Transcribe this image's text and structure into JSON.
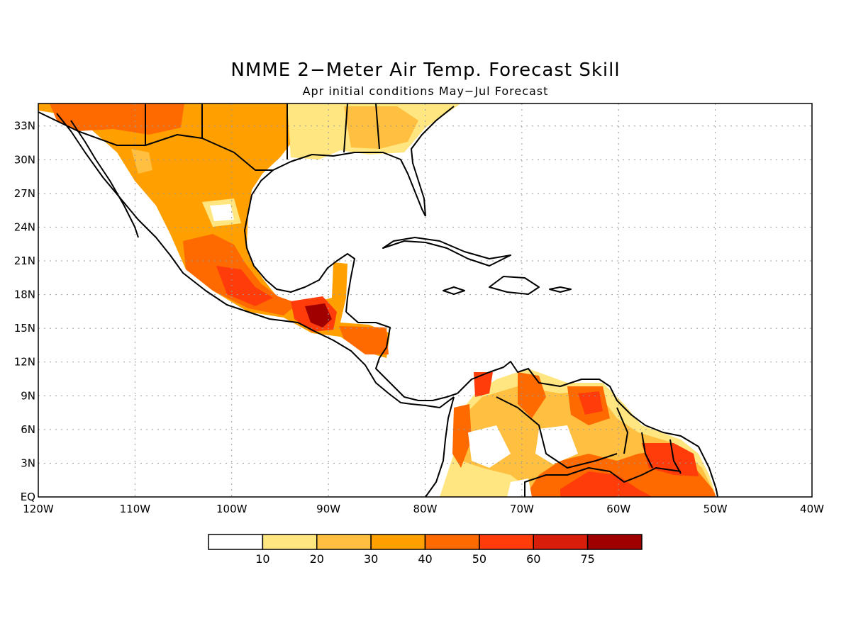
{
  "title": "NMME 2−Meter Air Temp. Forecast Skill",
  "subtitle": "Apr initial conditions   May−Jul Forecast",
  "map": {
    "lon_range": [
      -120,
      -40
    ],
    "lat_range": [
      0,
      35
    ],
    "x_ticks": [
      "120W",
      "110W",
      "100W",
      "90W",
      "80W",
      "70W",
      "60W",
      "50W",
      "40W"
    ],
    "y_ticks": [
      "EQ",
      "3N",
      "6N",
      "9N",
      "12N",
      "15N",
      "18N",
      "21N",
      "24N",
      "27N",
      "30N",
      "33N"
    ],
    "grid": true,
    "field": "forecast skill (%)"
  },
  "colorbar": {
    "colors": [
      "#ffffff",
      "#ffe680",
      "#ffbf40",
      "#ffa000",
      "#ff6a00",
      "#ff3c0a",
      "#d81e0a",
      "#a00000"
    ],
    "labels": [
      "10",
      "20",
      "30",
      "40",
      "50",
      "60",
      "75"
    ]
  }
}
